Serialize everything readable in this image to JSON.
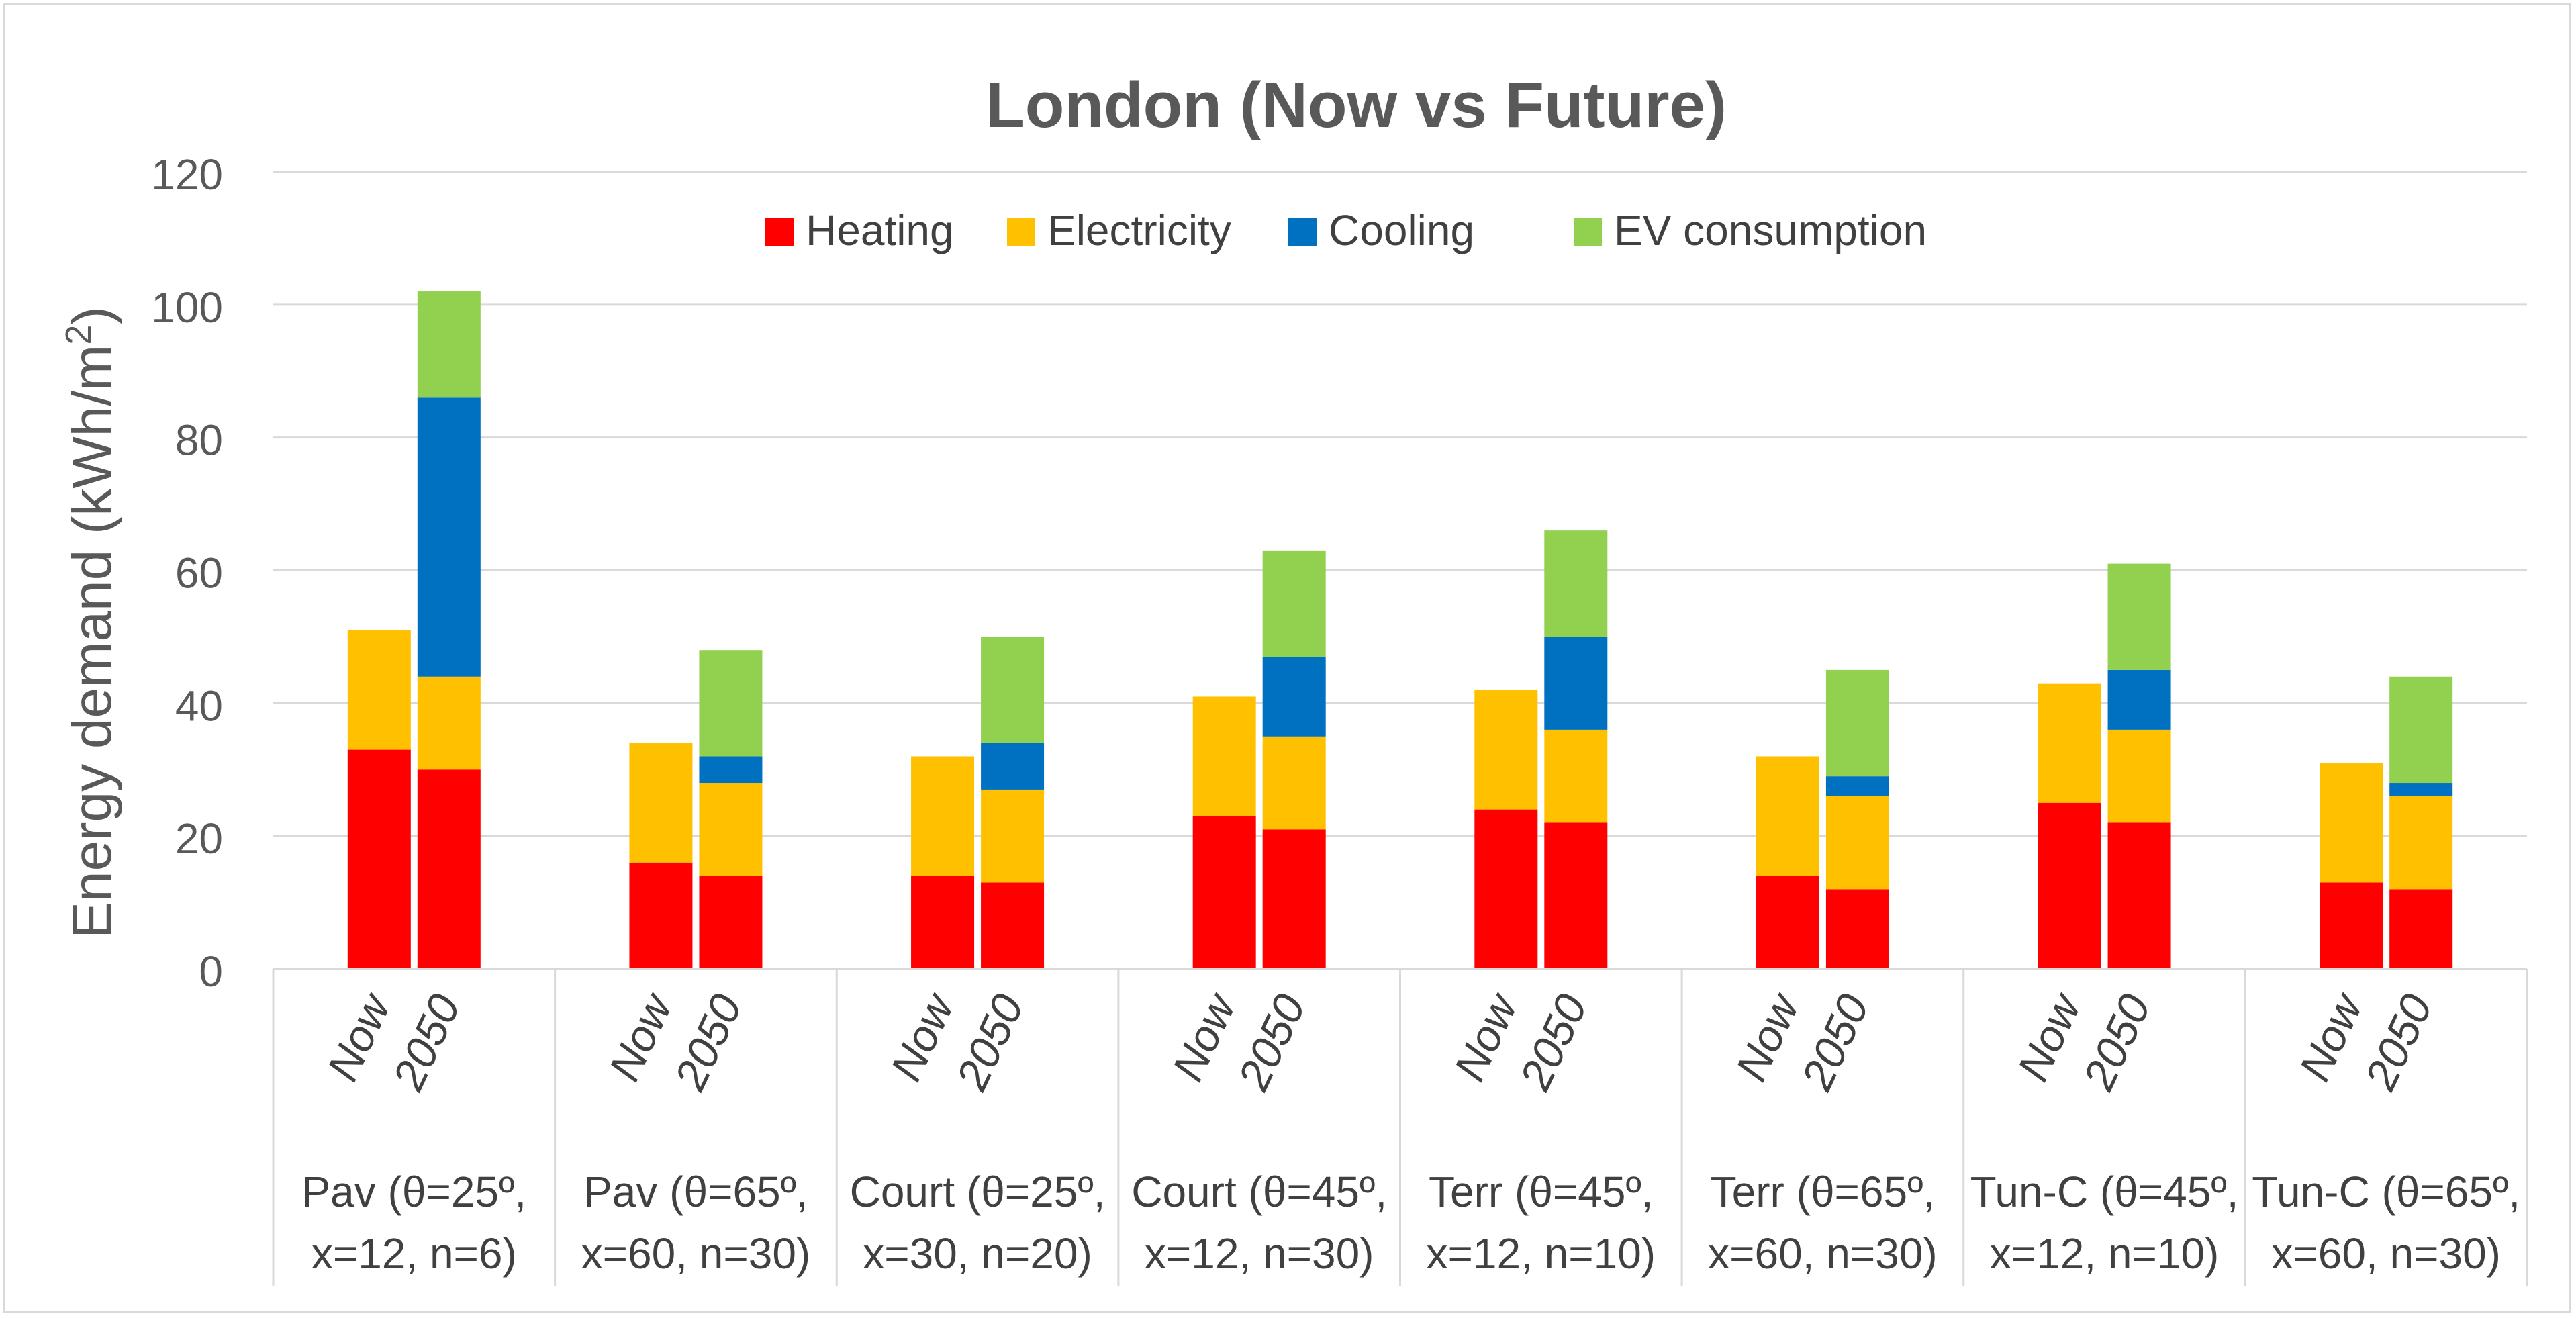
{
  "chart_data": {
    "type": "bar",
    "stacked": true,
    "title": "London (Now vs Future)",
    "ylabel": "Energy demand (kWh/m²)",
    "xlabel": "",
    "ylim": [
      0,
      120
    ],
    "yticks": [
      0,
      20,
      40,
      60,
      80,
      100,
      120
    ],
    "grid": true,
    "legend_position": "top-center",
    "sub_categories": [
      "Now",
      "2050"
    ],
    "groups": [
      {
        "line1": "Pav (θ=25º,",
        "line2": "x=12, n=6)"
      },
      {
        "line1": "Pav (θ=65º,",
        "line2": "x=60, n=30)"
      },
      {
        "line1": "Court (θ=25º,",
        "line2": "x=30, n=20)"
      },
      {
        "line1": "Court (θ=45º,",
        "line2": "x=12, n=30)"
      },
      {
        "line1": "Terr (θ=45º,",
        "line2": "x=12, n=10)"
      },
      {
        "line1": "Terr (θ=65º,",
        "line2": "x=60, n=30)"
      },
      {
        "line1": "Tun-C (θ=45º,",
        "line2": "x=12, n=10)"
      },
      {
        "line1": "Tun-C (θ=65º,",
        "line2": "x=60, n=30)"
      }
    ],
    "series": [
      {
        "name": "Heating",
        "color": "#ff0000",
        "values": [
          [
            33,
            30
          ],
          [
            16,
            14
          ],
          [
            14,
            13
          ],
          [
            23,
            21
          ],
          [
            24,
            22
          ],
          [
            14,
            12
          ],
          [
            25,
            22
          ],
          [
            13,
            12
          ]
        ]
      },
      {
        "name": "Electricity",
        "color": "#ffc000",
        "values": [
          [
            18,
            14
          ],
          [
            18,
            14
          ],
          [
            18,
            14
          ],
          [
            18,
            14
          ],
          [
            18,
            14
          ],
          [
            18,
            14
          ],
          [
            18,
            14
          ],
          [
            18,
            14
          ]
        ]
      },
      {
        "name": "Cooling",
        "color": "#0070c0",
        "values": [
          [
            0,
            42
          ],
          [
            0,
            4
          ],
          [
            0,
            7
          ],
          [
            0,
            12
          ],
          [
            0,
            14
          ],
          [
            0,
            3
          ],
          [
            0,
            9
          ],
          [
            0,
            2
          ]
        ]
      },
      {
        "name": "EV consumption",
        "color": "#92d050",
        "values": [
          [
            0,
            16
          ],
          [
            0,
            16
          ],
          [
            0,
            16
          ],
          [
            0,
            16
          ],
          [
            0,
            16
          ],
          [
            0,
            16
          ],
          [
            0,
            16
          ],
          [
            0,
            16
          ]
        ]
      }
    ]
  }
}
